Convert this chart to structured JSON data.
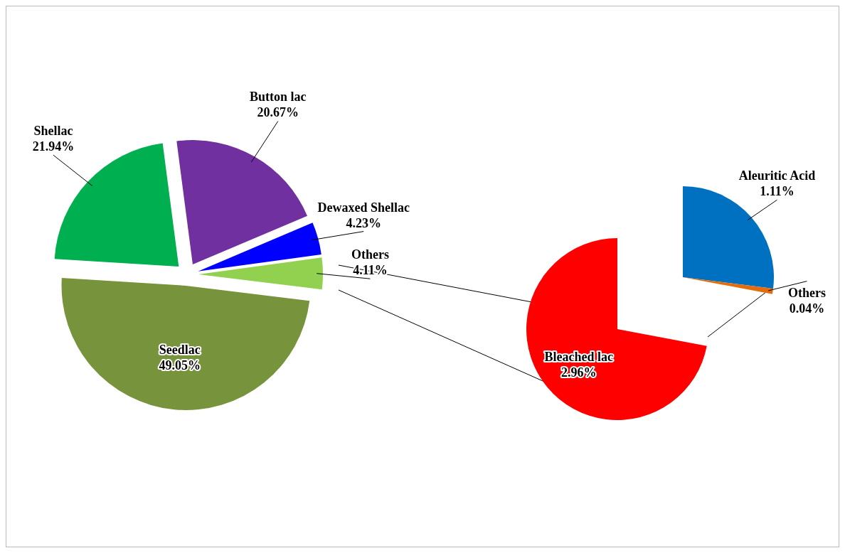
{
  "chart_data": [
    {
      "type": "pie",
      "categories": [
        "Seedlac",
        "Shellac",
        "Button lac",
        "Dewaxed Shellac",
        "Others"
      ],
      "values": [
        49.05,
        21.94,
        20.67,
        4.23,
        4.11
      ],
      "colors": [
        "#77933c",
        "#00b050",
        "#7030a0",
        "#0000ff",
        "#92d050"
      ],
      "value_labels": [
        "49.05%",
        "21.94%",
        "20.67%",
        "4.23%",
        "4.11%"
      ]
    },
    {
      "type": "pie",
      "categories": [
        "Bleached lac"
      ],
      "values": [
        2.96
      ],
      "colors": [
        "#ff0000"
      ],
      "value_labels": [
        "2.96%"
      ]
    },
    {
      "type": "pie",
      "categories": [
        "Aleuritic Acid",
        "Others"
      ],
      "values": [
        1.11,
        0.04
      ],
      "colors": [
        "#0070c0",
        "#e46c0a"
      ],
      "value_labels": [
        "1.11%",
        "0.04%"
      ]
    }
  ]
}
